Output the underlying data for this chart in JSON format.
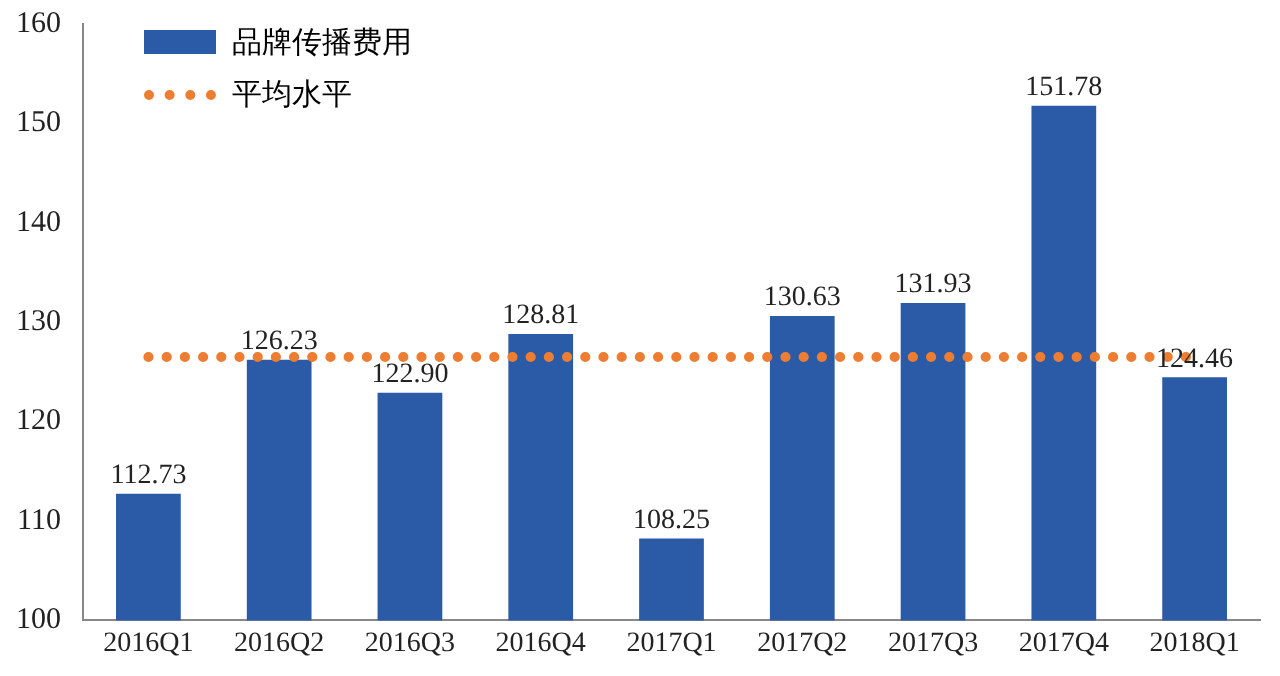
{
  "chart_data": {
    "type": "bar",
    "categories": [
      "2016Q1",
      "2016Q2",
      "2016Q3",
      "2016Q4",
      "2017Q1",
      "2017Q2",
      "2017Q3",
      "2017Q4",
      "2018Q1"
    ],
    "series": [
      {
        "name": "品牌传播费用",
        "color": "#2b5aa6",
        "values": [
          112.73,
          126.23,
          122.9,
          128.81,
          108.25,
          130.63,
          131.93,
          151.78,
          124.46
        ],
        "value_labels": [
          "112.73",
          "126.23",
          "122.90",
          "128.81",
          "108.25",
          "130.63",
          "131.93",
          "151.78",
          "124.46"
        ]
      },
      {
        "name": "平均水平",
        "type": "line",
        "color": "#ed7d31",
        "line_style": "dotted",
        "marker": "none",
        "values": [
          126.5,
          126.5,
          126.5,
          126.5,
          126.5,
          126.5,
          126.5,
          126.5,
          126.5
        ]
      }
    ],
    "ylim": [
      100,
      160
    ],
    "yticks": [
      100,
      110,
      120,
      130,
      140,
      150,
      160
    ],
    "grid": false,
    "legend": "top left"
  }
}
